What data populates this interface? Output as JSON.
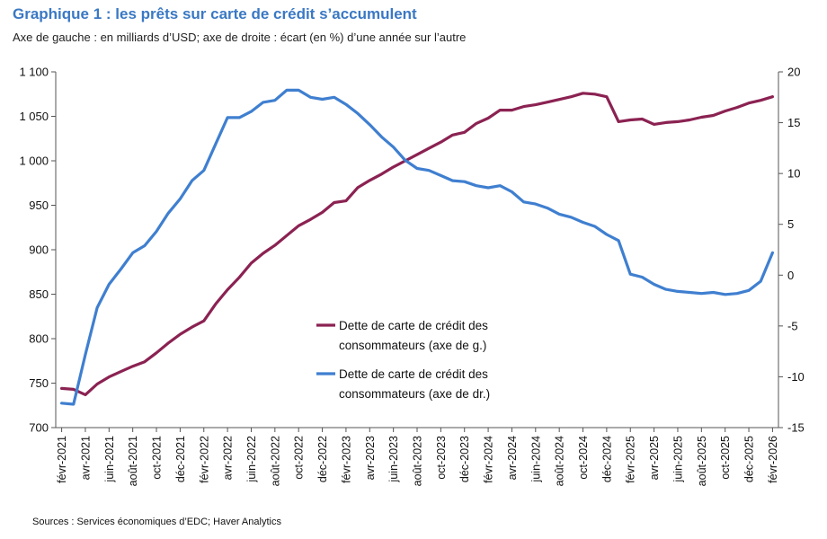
{
  "title": "Graphique 1 : les prêts sur carte de crédit s’accumulent",
  "subtitle": "Axe de gauche : en milliards d’USD; axe de droite : écart (en %) d’une année sur l’autre",
  "source": "Sources : Services économiques d’EDC; Haver Analytics",
  "colors": {
    "level": "#8b2252",
    "growth": "#3f7fd0"
  },
  "chart_data": {
    "type": "line",
    "left_axis": {
      "ylim": [
        700,
        1100
      ],
      "ticks": [
        700,
        750,
        800,
        850,
        900,
        950,
        1000,
        1050,
        1100
      ],
      "tick_labels": [
        "700",
        "750",
        "800",
        "850",
        "900",
        "950",
        "1 000",
        "1 050",
        "1 100"
      ]
    },
    "right_axis": {
      "ylim": [
        -15,
        20
      ],
      "ticks": [
        -15,
        -10,
        -5,
        0,
        5,
        10,
        15,
        20
      ],
      "tick_labels": [
        "-15",
        "-10",
        "-5",
        "0",
        "5",
        "10",
        "15",
        "20"
      ]
    },
    "x_labels": [
      "févr-2021",
      "avr-2021",
      "juin-2021",
      "août-2021",
      "oct-2021",
      "déc-2021",
      "févr-2022",
      "avr-2022",
      "juin-2022",
      "août-2022",
      "oct-2022",
      "déc-2022",
      "févr-2023",
      "avr-2023",
      "juin-2023",
      "août-2023",
      "oct-2023",
      "déc-2023",
      "févr-2024",
      "avr-2024",
      "juin-2024",
      "août-2024",
      "oct-2024",
      "déc-2024",
      "févr-2025",
      "avr-2025",
      "juin-2025",
      "août-2025",
      "oct-2025",
      "déc-2025",
      "févr-2026"
    ],
    "series": [
      {
        "name": "Dette de carte de crédit des consommateurs (axe de g.)",
        "legend_lines": [
          "Dette de carte de crédit des",
          "consommateurs (axe de g.)"
        ],
        "axis": "left",
        "values": [
          744,
          743,
          737,
          749,
          757,
          763,
          769,
          774,
          784,
          795,
          805,
          813,
          820,
          839,
          855,
          869,
          885,
          896,
          905,
          916,
          927,
          934,
          942,
          953,
          955,
          970,
          978,
          985,
          993,
          1000,
          1007,
          1014,
          1021,
          1029,
          1032,
          1042,
          1048,
          1057,
          1057,
          1061,
          1063,
          1066,
          1069,
          1072,
          1076,
          1075,
          1072,
          1044,
          1046,
          1047,
          1041,
          1043,
          1044,
          1046,
          1049,
          1051,
          1056,
          1060,
          1065,
          1068,
          1072
        ]
      },
      {
        "name": "Dette de carte de crédit des consommateurs (axe de dr.)",
        "legend_lines": [
          "Dette de carte de crédit des",
          "consommateurs (axe de dr.)"
        ],
        "axis": "right",
        "values": [
          -12.6,
          -12.7,
          -7.8,
          -3.2,
          -0.9,
          0.6,
          2.2,
          2.9,
          4.3,
          6.1,
          7.5,
          9.3,
          10.3,
          12.9,
          15.5,
          15.5,
          16.1,
          17.0,
          17.2,
          18.2,
          18.2,
          17.5,
          17.3,
          17.5,
          16.8,
          15.9,
          14.8,
          13.6,
          12.6,
          11.3,
          10.5,
          10.3,
          9.8,
          9.3,
          9.2,
          8.8,
          8.6,
          8.8,
          8.2,
          7.2,
          7.0,
          6.6,
          6.0,
          5.7,
          5.2,
          4.8,
          4.0,
          3.4,
          0.1,
          -0.2,
          -0.9,
          -1.4,
          -1.6,
          -1.7,
          -1.8,
          -1.7,
          -1.9,
          -1.8,
          -1.5,
          -0.6,
          2.2
        ]
      }
    ],
    "legend_position": "center"
  }
}
